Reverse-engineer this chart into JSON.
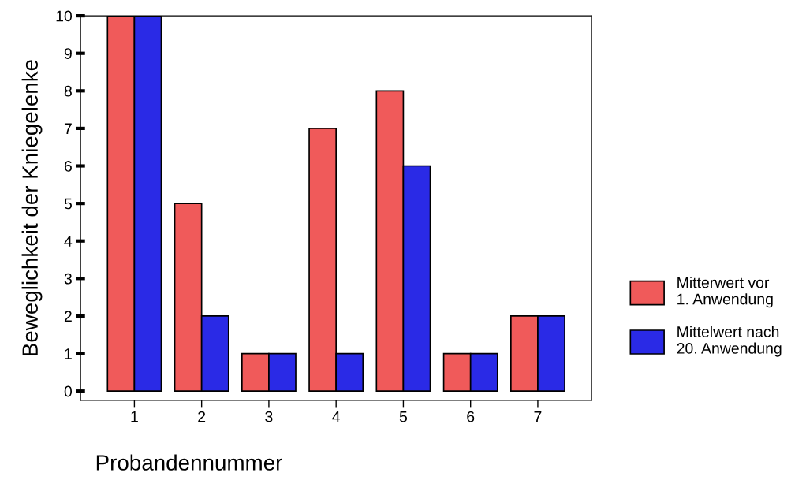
{
  "chart_data": {
    "type": "bar",
    "xlabel": "Probandennummer",
    "ylabel": "Beweglichkeit der Kniegelenke",
    "categories": [
      "1",
      "2",
      "3",
      "4",
      "5",
      "6",
      "7"
    ],
    "series": [
      {
        "name": "Mitterwert vor\n1. Anwendung",
        "color": "#f05a5a",
        "values": [
          10,
          5,
          1,
          7,
          8,
          1,
          2
        ]
      },
      {
        "name": "Mittelwert nach\n20. Anwendung",
        "color": "#2a2ae6",
        "values": [
          10,
          2,
          1,
          1,
          6,
          1,
          2
        ]
      }
    ],
    "ylim": [
      -0.25,
      10
    ],
    "yticks": [
      0,
      1,
      2,
      3,
      4,
      5,
      6,
      7,
      8,
      9,
      10
    ],
    "grid": false,
    "legend": "right"
  }
}
